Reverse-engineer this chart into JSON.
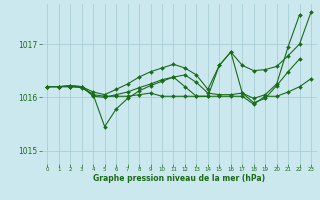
{
  "bg_color": "#cce8ef",
  "grid_color": "#aacdd6",
  "line_color": "#1a6b1a",
  "marker_color": "#1a6b1a",
  "xlabel": "Graphe pression niveau de la mer (hPa)",
  "ylim": [
    1014.75,
    1017.75
  ],
  "xlim": [
    -0.5,
    23.5
  ],
  "yticks": [
    1015,
    1016,
    1017
  ],
  "xticks": [
    0,
    1,
    2,
    3,
    4,
    5,
    6,
    7,
    8,
    9,
    10,
    11,
    12,
    13,
    14,
    15,
    16,
    17,
    18,
    19,
    20,
    21,
    22,
    23
  ],
  "line1_x": [
    0,
    1,
    2,
    3,
    4,
    5,
    6,
    7,
    8,
    9,
    10,
    11,
    12,
    13,
    14,
    15,
    16,
    17,
    18,
    19,
    20,
    21,
    22,
    23
  ],
  "line1_y": [
    1016.2,
    1016.2,
    1016.22,
    1016.2,
    1016.1,
    1016.05,
    1016.15,
    1016.25,
    1016.38,
    1016.48,
    1016.55,
    1016.62,
    1016.55,
    1016.42,
    1016.15,
    1016.6,
    1016.85,
    1016.6,
    1016.5,
    1016.52,
    1016.58,
    1016.78,
    1017.0,
    1017.6
  ],
  "line2_x": [
    0,
    1,
    2,
    3,
    4,
    5,
    6,
    7,
    8,
    9,
    10,
    11,
    12,
    13,
    14,
    15,
    16,
    17,
    18,
    19,
    20,
    21,
    22
  ],
  "line2_y": [
    1016.2,
    1016.2,
    1016.22,
    1016.2,
    1016.05,
    1015.45,
    1015.78,
    1015.98,
    1016.12,
    1016.22,
    1016.3,
    1016.38,
    1016.2,
    1016.02,
    1016.02,
    1016.6,
    1016.85,
    1016.08,
    1015.98,
    1016.05,
    1016.25,
    1016.95,
    1017.55
  ],
  "line3_x": [
    0,
    1,
    2,
    3,
    4,
    5,
    6,
    7,
    8,
    9,
    10,
    11,
    12,
    13,
    14,
    15,
    16,
    17,
    18,
    19,
    20,
    21,
    22
  ],
  "line3_y": [
    1016.2,
    1016.2,
    1016.2,
    1016.2,
    1016.02,
    1016.0,
    1016.05,
    1016.1,
    1016.18,
    1016.25,
    1016.33,
    1016.38,
    1016.42,
    1016.28,
    1016.08,
    1016.05,
    1016.05,
    1016.08,
    1015.9,
    1015.98,
    1016.22,
    1016.48,
    1016.72
  ],
  "line4_x": [
    0,
    1,
    2,
    3,
    4,
    5,
    6,
    7,
    8,
    9,
    10,
    11,
    12,
    13,
    14,
    15,
    16,
    17,
    18,
    19,
    20,
    21,
    22,
    23
  ],
  "line4_y": [
    1016.2,
    1016.2,
    1016.2,
    1016.18,
    1016.05,
    1016.02,
    1016.02,
    1016.02,
    1016.05,
    1016.08,
    1016.02,
    1016.02,
    1016.02,
    1016.02,
    1016.02,
    1016.02,
    1016.02,
    1016.02,
    1015.87,
    1016.02,
    1016.02,
    1016.1,
    1016.2,
    1016.35
  ]
}
